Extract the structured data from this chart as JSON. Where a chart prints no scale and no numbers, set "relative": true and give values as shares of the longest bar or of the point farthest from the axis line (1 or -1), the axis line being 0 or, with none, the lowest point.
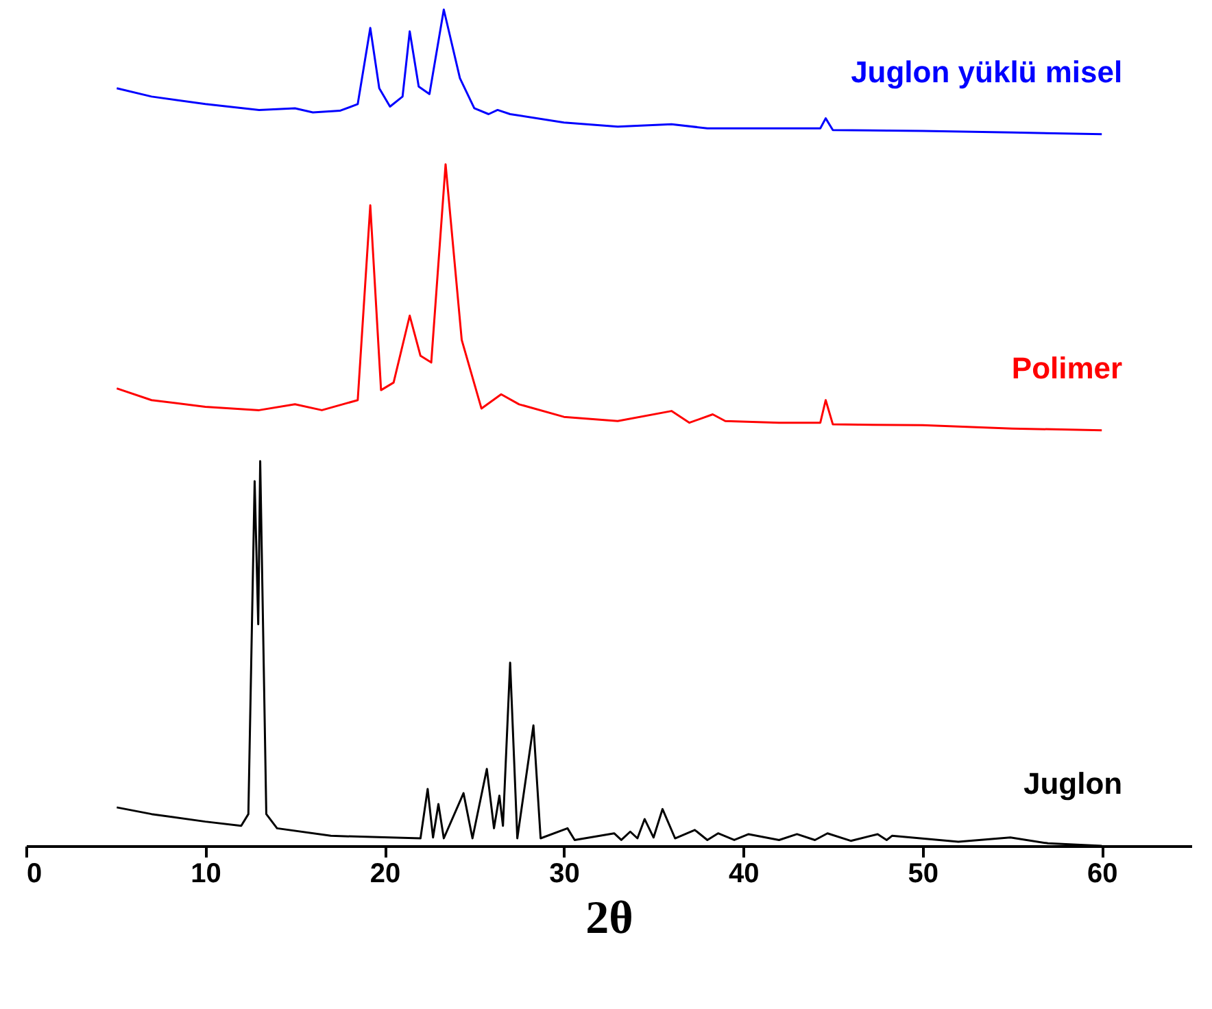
{
  "chart_data": {
    "type": "line",
    "relative": true,
    "xlabel": "2θ",
    "xlim": [
      0,
      65
    ],
    "xticks": [
      0,
      10,
      20,
      30,
      40,
      50,
      60
    ],
    "grid": false,
    "line_style": "solid",
    "marker": "none",
    "series": [
      {
        "name": "Juglon yüklü misel",
        "color": "#0000ff",
        "x": [
          5.06,
          7,
          10,
          13,
          15,
          16,
          17.5,
          18.5,
          19.2,
          19.7,
          20.3,
          21,
          21.4,
          21.9,
          22.5,
          23.3,
          24.2,
          25,
          25.8,
          26.3,
          27,
          30,
          33,
          36,
          38,
          40,
          44.3,
          44.6,
          45,
          50,
          55,
          60
        ],
        "values": [
          0.906,
          0.896,
          0.887,
          0.88,
          0.882,
          0.877,
          0.879,
          0.887,
          0.978,
          0.906,
          0.884,
          0.896,
          0.974,
          0.908,
          0.899,
          1.0,
          0.918,
          0.882,
          0.875,
          0.88,
          0.875,
          0.865,
          0.86,
          0.863,
          0.858,
          0.858,
          0.858,
          0.87,
          0.856,
          0.855,
          0.853,
          0.851
        ]
      },
      {
        "name": "Polimer",
        "color": "#ff0000",
        "x": [
          5.06,
          7,
          10,
          13,
          15,
          16.5,
          18.5,
          19.2,
          19.8,
          20.5,
          21.4,
          22,
          22.6,
          23.4,
          24.3,
          25.4,
          26.5,
          27.5,
          30,
          33,
          36,
          37,
          38.3,
          39,
          42,
          44.3,
          44.6,
          45,
          50,
          55,
          60
        ],
        "values": [
          0.547,
          0.533,
          0.525,
          0.521,
          0.528,
          0.521,
          0.533,
          0.766,
          0.545,
          0.554,
          0.634,
          0.586,
          0.578,
          0.815,
          0.605,
          0.523,
          0.54,
          0.528,
          0.513,
          0.508,
          0.52,
          0.506,
          0.516,
          0.508,
          0.506,
          0.506,
          0.533,
          0.504,
          0.503,
          0.499,
          0.497
        ]
      },
      {
        "name": "Juglon",
        "color": "#000000",
        "x": [
          5.06,
          7,
          10,
          12,
          12.4,
          12.75,
          12.95,
          13.06,
          13.4,
          14,
          17,
          22,
          22.4,
          22.7,
          23.0,
          23.3,
          24.4,
          24.9,
          25.7,
          26.1,
          26.4,
          26.6,
          27.0,
          27.4,
          28.3,
          28.7,
          30.2,
          30.6,
          32.8,
          33.2,
          33.7,
          34.1,
          34.5,
          35.0,
          35.5,
          36.2,
          37.3,
          38.0,
          38.6,
          39.5,
          40.3,
          42,
          43,
          44,
          44.7,
          46,
          47.5,
          48.0,
          48.3,
          52,
          54.9,
          57,
          60
        ],
        "values": [
          0.046,
          0.038,
          0.029,
          0.024,
          0.038,
          0.436,
          0.265,
          0.46,
          0.038,
          0.021,
          0.012,
          0.009,
          0.068,
          0.01,
          0.05,
          0.009,
          0.063,
          0.009,
          0.092,
          0.021,
          0.06,
          0.024,
          0.219,
          0.009,
          0.144,
          0.009,
          0.021,
          0.007,
          0.015,
          0.007,
          0.017,
          0.009,
          0.032,
          0.01,
          0.044,
          0.009,
          0.019,
          0.007,
          0.015,
          0.007,
          0.014,
          0.007,
          0.014,
          0.007,
          0.015,
          0.006,
          0.014,
          0.007,
          0.012,
          0.005,
          0.01,
          0.003,
          0.0
        ]
      }
    ]
  }
}
